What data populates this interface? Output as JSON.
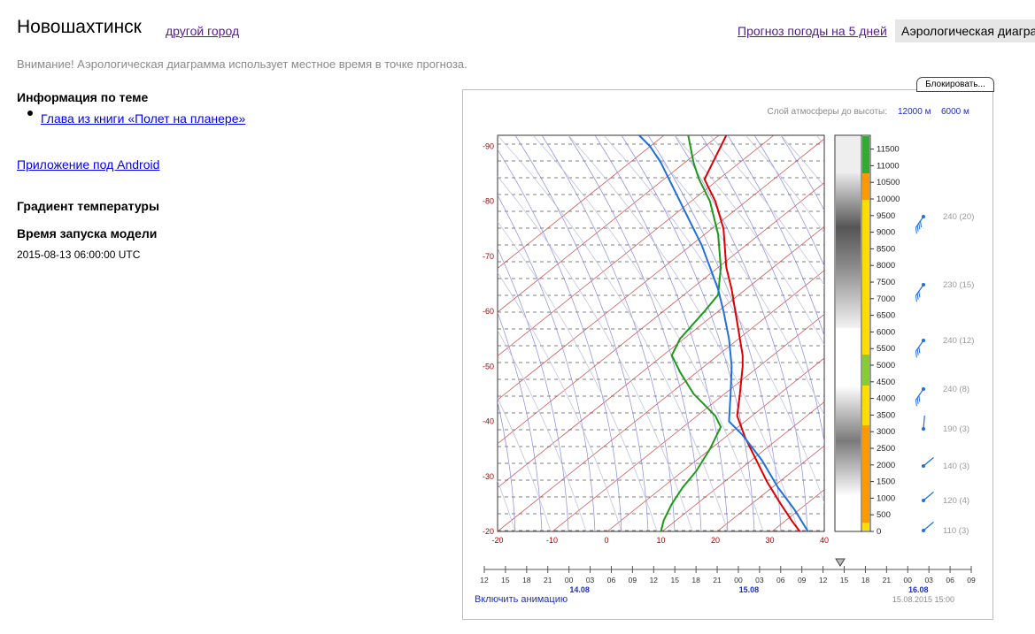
{
  "header": {
    "city": "Новошахтинск",
    "other_city_link": "другой город",
    "forecast_link": "Прогноз погоды на 5 дней",
    "aerology_tab": "Аэрологическая диаграмма"
  },
  "warning": "Внимание! Аэрологическая диаграмма использует местное время в точке прогноза.",
  "sidebar": {
    "info_heading": "Информация по теме",
    "book_link": "Глава из книги «Полет на планере»",
    "android_link": "Приложение под Android",
    "gradient_heading": "Градиент температуры",
    "model_heading": "Время запуска модели",
    "model_time": "2015-08-13 06:00:00 UTC"
  },
  "diagram": {
    "block_button": "Блокировать...",
    "layer_label": "Слой атмосферы до высоты:",
    "height_options": [
      "12000 м",
      "6000 м"
    ],
    "animation_link": "Включить анимацию",
    "current_time": "15.08.2015 15:00",
    "colors": {
      "temperature": "#dd0000",
      "dewpoint": "#1a9a1a",
      "parcel": "#1f6fdc",
      "axis_label": "#aa0000"
    }
  },
  "chart_data": {
    "type": "line",
    "xlabel": "",
    "ylabel": "",
    "xlim": [
      -20,
      40
    ],
    "ylim": [
      -20,
      -92
    ],
    "x_ticks": [
      "-20",
      "-10",
      "0",
      "10",
      "20",
      "30",
      "40"
    ],
    "y_ticks": [
      "-20",
      "-30",
      "-40",
      "-50",
      "-60",
      "-70",
      "-80",
      "-90"
    ],
    "series": [
      {
        "points": [
          [
            35.5,
            -20
          ],
          [
            34,
            -22
          ],
          [
            32,
            -25
          ],
          [
            29.5,
            -29
          ],
          [
            27.5,
            -33
          ],
          [
            25.5,
            -37
          ],
          [
            24,
            -41
          ],
          [
            24.5,
            -45
          ],
          [
            25,
            -50
          ],
          [
            25,
            -52
          ],
          [
            24,
            -58
          ],
          [
            23,
            -64
          ],
          [
            22,
            -68
          ],
          [
            21.5,
            -75
          ],
          [
            20,
            -80
          ],
          [
            18,
            -84
          ],
          [
            20,
            -88
          ],
          [
            22,
            -92
          ]
        ]
      },
      {
        "points": [
          [
            10,
            -20
          ],
          [
            10.5,
            -22
          ],
          [
            12,
            -25
          ],
          [
            14,
            -28
          ],
          [
            16.5,
            -31
          ],
          [
            19,
            -35
          ],
          [
            21,
            -39
          ],
          [
            20,
            -41
          ],
          [
            16,
            -45
          ],
          [
            13.5,
            -49
          ],
          [
            12,
            -52
          ],
          [
            13.5,
            -55
          ],
          [
            18,
            -60
          ],
          [
            20.5,
            -63
          ],
          [
            21,
            -68
          ],
          [
            20.5,
            -74
          ],
          [
            19,
            -80
          ],
          [
            17,
            -84
          ],
          [
            16,
            -87
          ],
          [
            15,
            -92
          ]
        ]
      },
      {
        "points": [
          [
            37,
            -20
          ],
          [
            34.5,
            -24
          ],
          [
            31.5,
            -28
          ],
          [
            28.5,
            -33
          ],
          [
            25,
            -37.5
          ],
          [
            22.5,
            -40
          ],
          [
            22.8,
            -45
          ],
          [
            23,
            -50
          ],
          [
            22.5,
            -55
          ],
          [
            21.5,
            -60
          ],
          [
            20.5,
            -64
          ],
          [
            19,
            -68
          ],
          [
            17.5,
            -72
          ],
          [
            16,
            -75
          ],
          [
            14,
            -79
          ],
          [
            12,
            -83
          ],
          [
            10,
            -87
          ],
          [
            8,
            -90
          ],
          [
            6,
            -92
          ]
        ]
      }
    ],
    "height_scale": [
      "0",
      "500",
      "1000",
      "1500",
      "2000",
      "2500",
      "3000",
      "3500",
      "4000",
      "4500",
      "5000",
      "5500",
      "6000",
      "6500",
      "7000",
      "7500",
      "8000",
      "8500",
      "9000",
      "9500",
      "10000",
      "10500",
      "11000",
      "11500"
    ],
    "winds": [
      {
        "label": "240 (20)"
      },
      {
        "label": "230 (15)"
      },
      {
        "label": "240 (12)"
      },
      {
        "label": "240 (8)"
      },
      {
        "label": "190 (3)"
      },
      {
        "label": "140 (3)"
      },
      {
        "label": "120 (4)"
      },
      {
        "label": "110 (3)"
      }
    ],
    "timeline": {
      "hours": [
        "12",
        "15",
        "18",
        "21",
        "00",
        "03",
        "06",
        "09",
        "12",
        "15",
        "18",
        "21",
        "00",
        "03",
        "06",
        "09",
        "12",
        "15",
        "18",
        "21",
        "00",
        "03",
        "06",
        "09"
      ],
      "dates": [
        "14.08",
        "15.08",
        "16.08"
      ]
    }
  }
}
